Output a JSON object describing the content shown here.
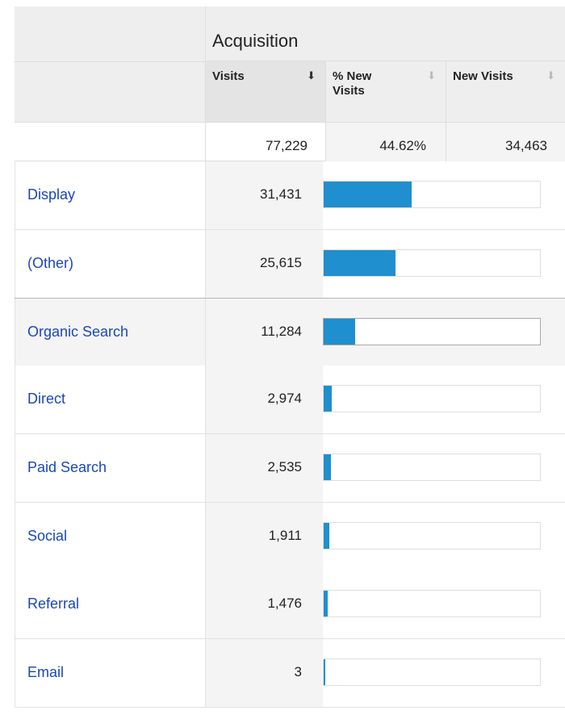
{
  "header": {
    "group_title": "Acquisition",
    "columns": [
      {
        "label": "Visits",
        "sort_icon": "arrow-down-icon",
        "active": true
      },
      {
        "label": "% New Visits",
        "sort_icon": "arrow-down-icon",
        "active": false
      },
      {
        "label": "New Visits",
        "sort_icon": "arrow-down-icon",
        "active": false
      }
    ]
  },
  "totals": {
    "visits": "77,229",
    "pct_new_visits": "44.62%",
    "new_visits": "34,463"
  },
  "rows": [
    {
      "name": "Display",
      "visits": "31,431",
      "share": 0.407
    },
    {
      "name": "(Other)",
      "visits": "25,615",
      "share": 0.332
    },
    {
      "name": "Organic Search",
      "visits": "11,284",
      "share": 0.146
    },
    {
      "name": "Direct",
      "visits": "2,974",
      "share": 0.0385
    },
    {
      "name": "Paid Search",
      "visits": "2,535",
      "share": 0.0328
    },
    {
      "name": "Social",
      "visits": "1,911",
      "share": 0.0247
    },
    {
      "name": "Referral",
      "visits": "1,476",
      "share": 0.0191
    },
    {
      "name": "Email",
      "visits": "3",
      "share": 4e-05
    }
  ],
  "colors": {
    "bar": "#1f8fcf",
    "link": "#1a47b8"
  }
}
